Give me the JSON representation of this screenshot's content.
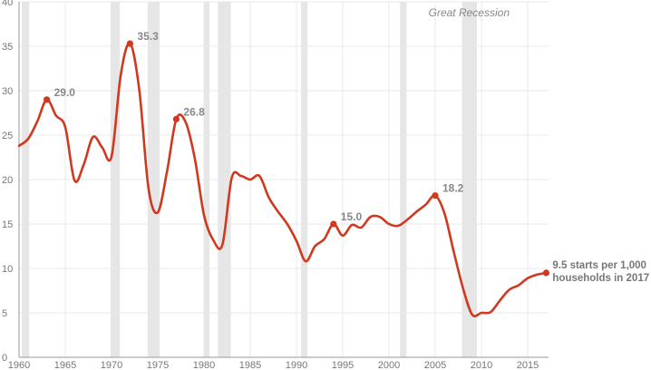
{
  "chart_data": {
    "type": "line",
    "title": "",
    "xlabel": "",
    "ylabel": "",
    "xlim": [
      1960,
      2018
    ],
    "ylim": [
      0,
      40
    ],
    "x_ticks": [
      1960,
      1965,
      1970,
      1975,
      1980,
      1985,
      1990,
      1995,
      2000,
      2005,
      2010,
      2015
    ],
    "y_ticks": [
      0,
      5,
      10,
      15,
      20,
      25,
      30,
      35,
      40
    ],
    "grid": true,
    "colors": {
      "line": "#d0391f",
      "recession": "#e6e6e6",
      "grid": "#e8e8e8"
    },
    "recession_annotation": "Great Recession",
    "recessions": [
      {
        "start": 1960.3,
        "end": 1961.1
      },
      {
        "start": 1969.9,
        "end": 1970.9
      },
      {
        "start": 1973.9,
        "end": 1975.2
      },
      {
        "start": 1980.0,
        "end": 1980.6
      },
      {
        "start": 1981.5,
        "end": 1982.9
      },
      {
        "start": 1990.5,
        "end": 1991.2
      },
      {
        "start": 2001.2,
        "end": 2001.9
      },
      {
        "start": 2007.9,
        "end": 2009.5
      }
    ],
    "series": [
      {
        "values": [
          [
            1960,
            23.8
          ],
          [
            1961,
            24.6
          ],
          [
            1962,
            26.6
          ],
          [
            1963,
            29.0
          ],
          [
            1964,
            27.2
          ],
          [
            1965,
            25.9
          ],
          [
            1966,
            19.9
          ],
          [
            1967,
            21.7
          ],
          [
            1968,
            24.8
          ],
          [
            1969,
            23.6
          ],
          [
            1970,
            22.6
          ],
          [
            1971,
            31.8
          ],
          [
            1972,
            35.3
          ],
          [
            1973,
            30.1
          ],
          [
            1974,
            19.0
          ],
          [
            1975,
            16.3
          ],
          [
            1976,
            20.9
          ],
          [
            1977,
            26.8
          ],
          [
            1978,
            26.5
          ],
          [
            1979,
            22.4
          ],
          [
            1980,
            16.0
          ],
          [
            1981,
            13.2
          ],
          [
            1982,
            12.7
          ],
          [
            1983,
            20.2
          ],
          [
            1984,
            20.4
          ],
          [
            1985,
            20.0
          ],
          [
            1986,
            20.4
          ],
          [
            1987,
            18.0
          ],
          [
            1988,
            16.4
          ],
          [
            1989,
            15.0
          ],
          [
            1990,
            13.1
          ],
          [
            1991,
            10.8
          ],
          [
            1992,
            12.5
          ],
          [
            1993,
            13.3
          ],
          [
            1994,
            15.0
          ],
          [
            1995,
            13.7
          ],
          [
            1996,
            14.9
          ],
          [
            1997,
            14.6
          ],
          [
            1998,
            15.8
          ],
          [
            1999,
            15.8
          ],
          [
            2000,
            15.0
          ],
          [
            2001,
            14.8
          ],
          [
            2002,
            15.5
          ],
          [
            2003,
            16.4
          ],
          [
            2004,
            17.2
          ],
          [
            2005,
            18.2
          ],
          [
            2006,
            16.2
          ],
          [
            2007,
            11.9
          ],
          [
            2008,
            7.8
          ],
          [
            2009,
            4.8
          ],
          [
            2010,
            5.0
          ],
          [
            2011,
            5.1
          ],
          [
            2012,
            6.4
          ],
          [
            2013,
            7.6
          ],
          [
            2014,
            8.1
          ],
          [
            2015,
            8.9
          ],
          [
            2016,
            9.3
          ],
          [
            2017,
            9.5
          ]
        ]
      }
    ],
    "highlights": [
      {
        "x": 1963,
        "y": 29.0,
        "label": "29.0"
      },
      {
        "x": 1972,
        "y": 35.3,
        "label": "35.3"
      },
      {
        "x": 1977,
        "y": 26.8,
        "label": "26.8"
      },
      {
        "x": 1994,
        "y": 15.0,
        "label": "15.0"
      },
      {
        "x": 2005,
        "y": 18.2,
        "label": "18.2"
      }
    ],
    "end_point": {
      "x": 2017,
      "y": 9.5,
      "label_line1": "9.5 starts per 1,000",
      "label_line2": "households in 2017"
    }
  }
}
